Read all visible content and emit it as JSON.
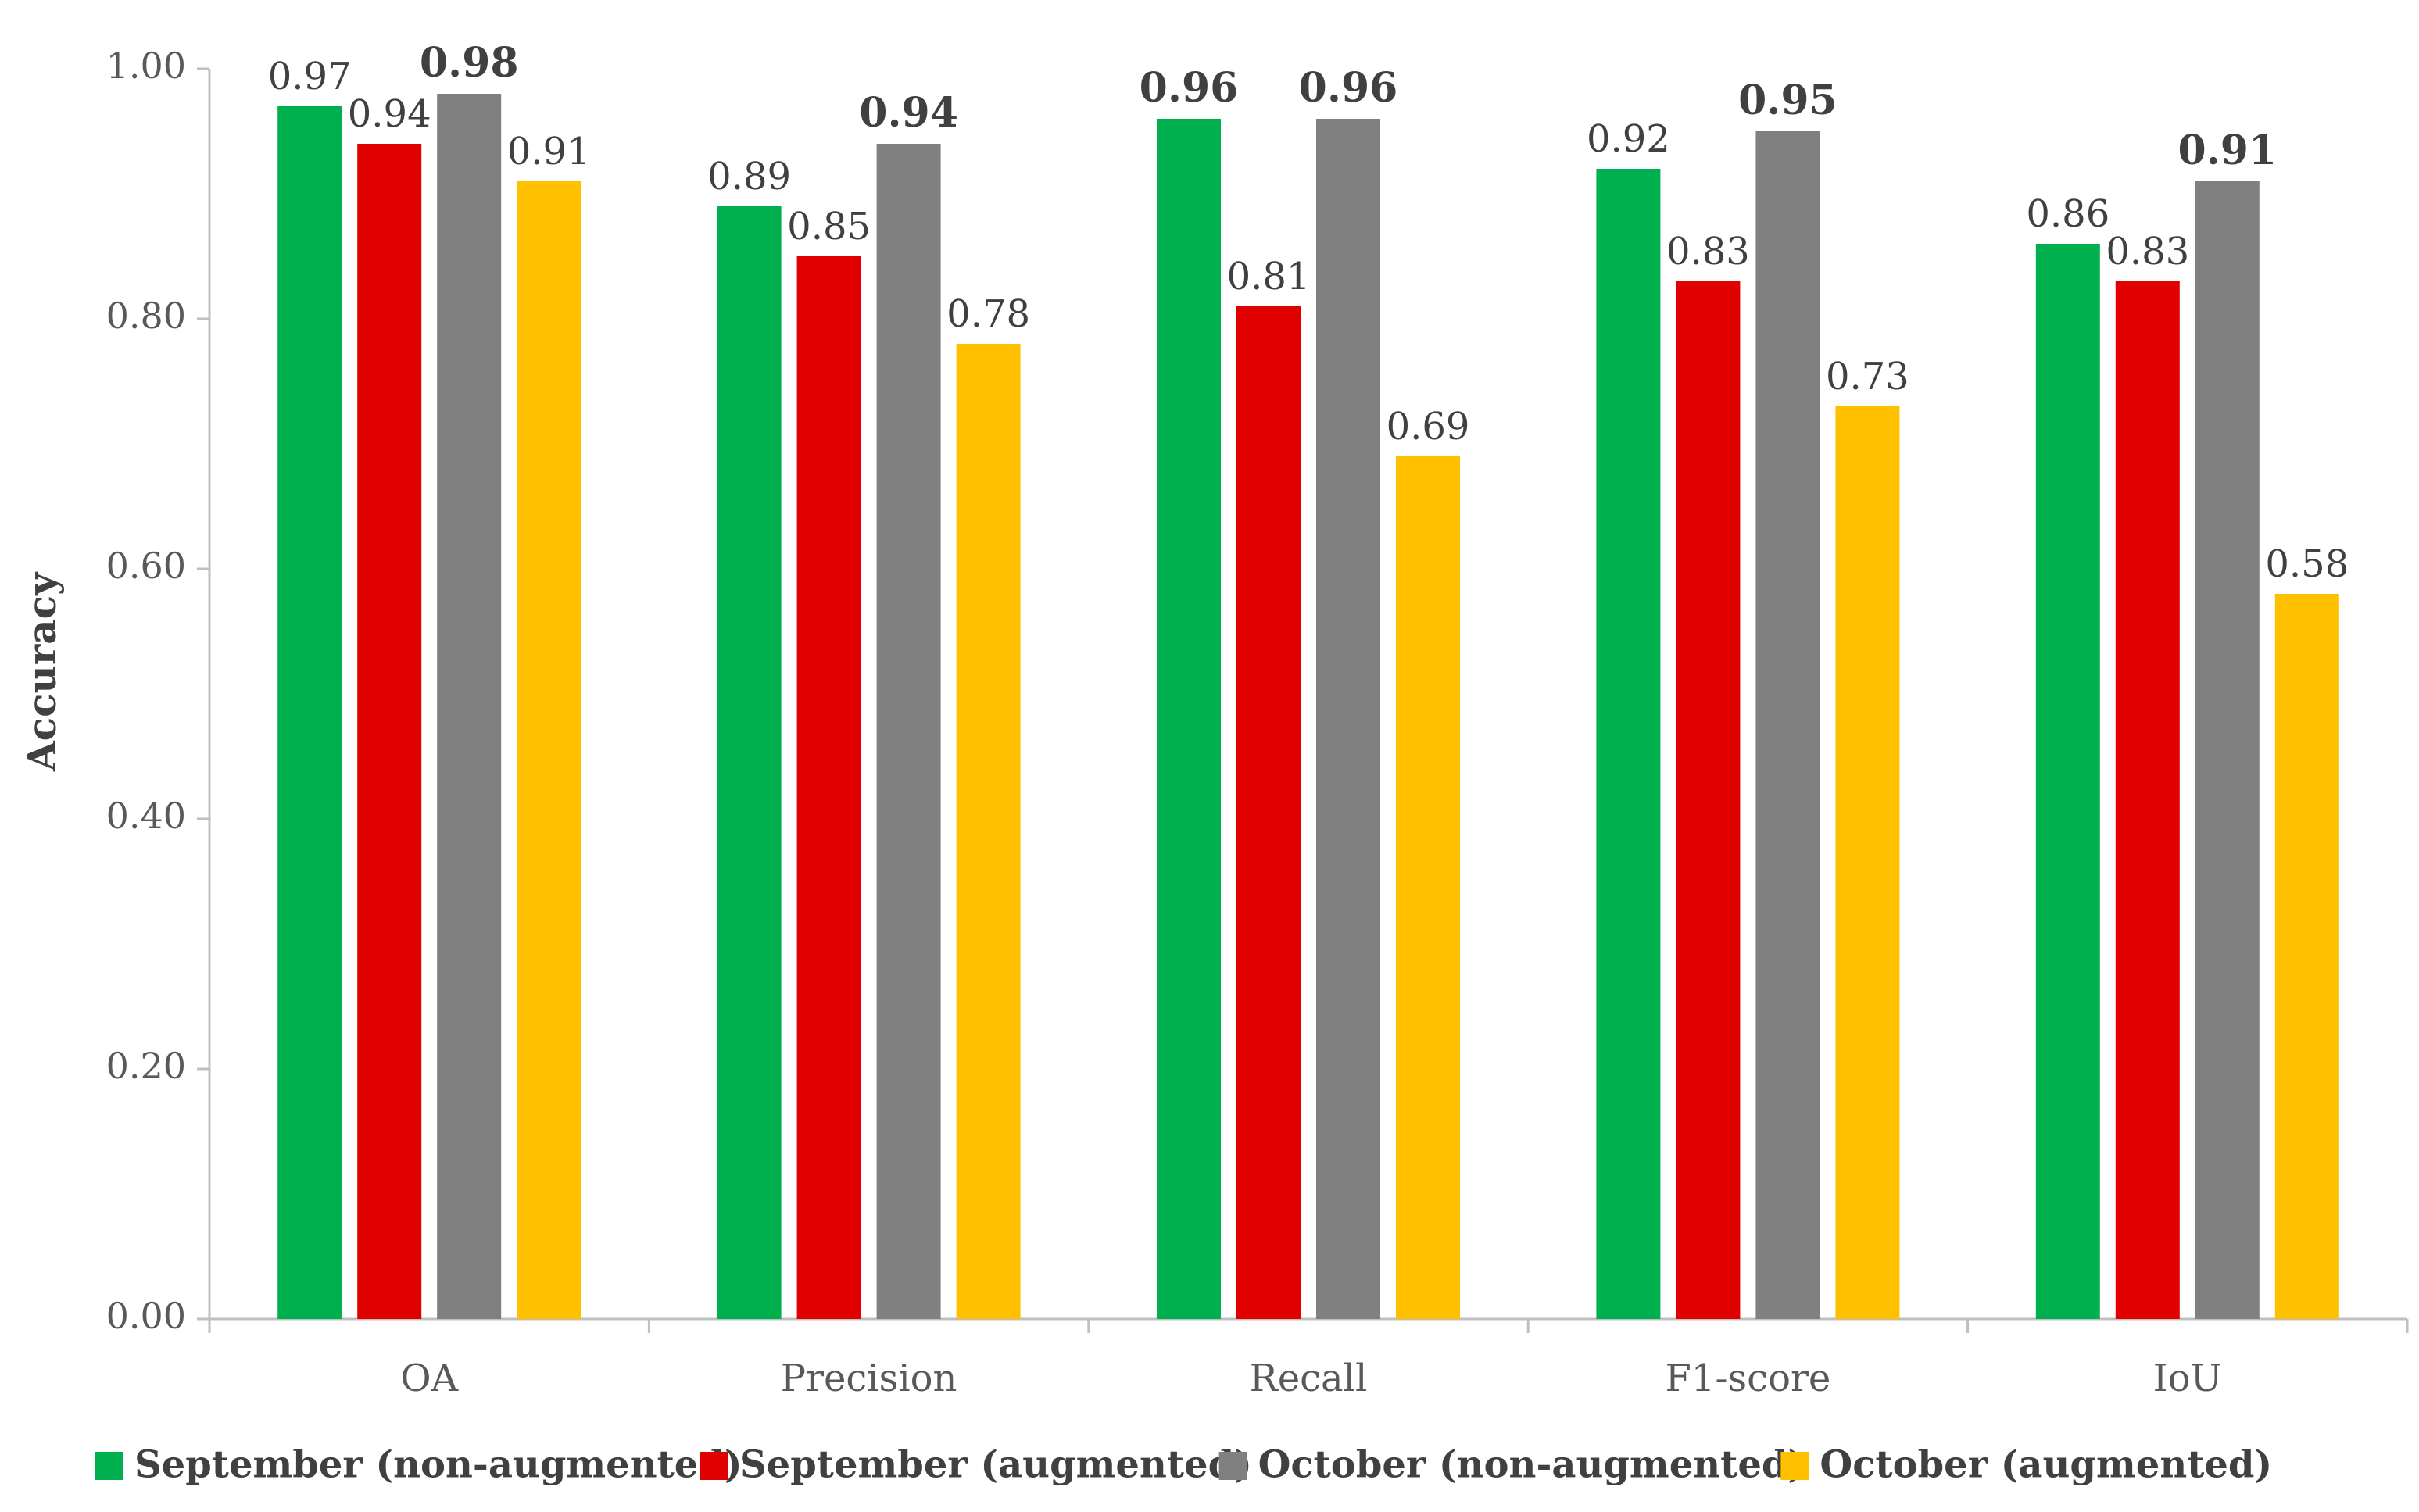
{
  "chart_data": {
    "type": "bar",
    "title": "",
    "xlabel": "",
    "ylabel": "Accuracy",
    "ylim": [
      0,
      1
    ],
    "y_ticks": [
      "0.00",
      "0.20",
      "0.40",
      "0.60",
      "0.80",
      "1.00"
    ],
    "y_tick_values": [
      0,
      0.2,
      0.4,
      0.6,
      0.8,
      1.0
    ],
    "categories": [
      "OA",
      "Precision",
      "Recall",
      "F1-score",
      "IoU"
    ],
    "series": [
      {
        "name": "September (non-augmented)",
        "color": "#00b04f",
        "values": [
          0.97,
          0.89,
          0.96,
          0.92,
          0.86
        ],
        "labels": [
          "0.97",
          "0.89",
          "0.96",
          "0.92",
          "0.86"
        ],
        "bold": [
          false,
          false,
          true,
          false,
          false
        ]
      },
      {
        "name": "September (augmented)",
        "color": "#e00000",
        "values": [
          0.94,
          0.85,
          0.81,
          0.83,
          0.83
        ],
        "labels": [
          "0.94",
          "0.85",
          "0.81",
          "0.83",
          "0.83"
        ],
        "bold": [
          false,
          false,
          false,
          false,
          false
        ]
      },
      {
        "name": "October (non-augmented)",
        "color": "#808080",
        "values": [
          0.98,
          0.94,
          0.96,
          0.95,
          0.91
        ],
        "labels": [
          "0.98",
          "0.94",
          "0.96",
          "0.95",
          "0.91"
        ],
        "bold": [
          true,
          true,
          true,
          true,
          true
        ]
      },
      {
        "name": "October (augmented)",
        "color": "#ffc000",
        "values": [
          0.91,
          0.78,
          0.69,
          0.73,
          0.58
        ],
        "labels": [
          "0.91",
          "0.78",
          "0.69",
          "0.73",
          "0.58"
        ],
        "bold": [
          false,
          false,
          false,
          false,
          false
        ]
      }
    ],
    "legend_position": "bottom",
    "grid": false
  }
}
